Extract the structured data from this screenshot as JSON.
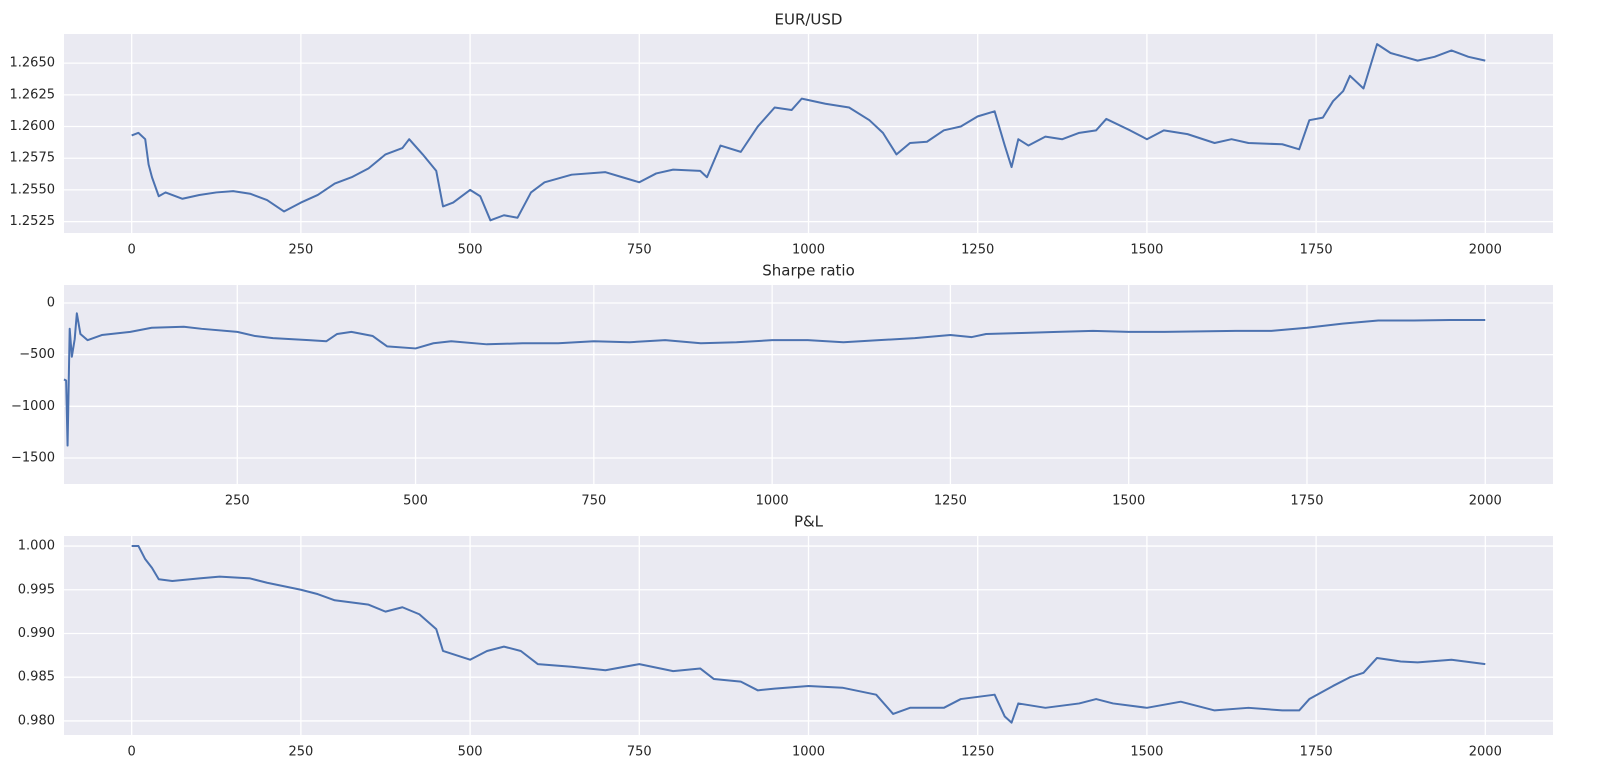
{
  "chart_data": [
    {
      "type": "line",
      "title": "EUR/USD",
      "color": "#4c72b0",
      "grid": true,
      "xlim": [
        -100,
        2100
      ],
      "xticks": [
        0,
        250,
        500,
        750,
        1000,
        1250,
        1500,
        1750,
        2000
      ],
      "ylim": [
        1.2516,
        1.2673
      ],
      "yticks": [
        1.2525,
        {
          "value": 1.255,
          "label": "1.2550"
        },
        1.2575,
        {
          "value": 1.26,
          "label": "1.2600"
        },
        1.2625,
        {
          "value": 1.265,
          "label": "1.2650"
        }
      ],
      "x": [
        0,
        10,
        20,
        25,
        30,
        40,
        50,
        75,
        100,
        125,
        150,
        175,
        200,
        225,
        250,
        275,
        300,
        325,
        350,
        375,
        400,
        410,
        430,
        450,
        460,
        475,
        500,
        515,
        530,
        550,
        570,
        590,
        610,
        650,
        700,
        725,
        750,
        775,
        800,
        840,
        850,
        870,
        900,
        925,
        950,
        975,
        990,
        1025,
        1060,
        1090,
        1110,
        1130,
        1150,
        1175,
        1200,
        1225,
        1250,
        1275,
        1290,
        1300,
        1310,
        1325,
        1350,
        1375,
        1400,
        1425,
        1440,
        1475,
        1500,
        1525,
        1560,
        1600,
        1625,
        1650,
        1700,
        1725,
        1740,
        1760,
        1775,
        1790,
        1800,
        1820,
        1840,
        1860,
        1880,
        1900,
        1925,
        1950,
        1975,
        2000
      ],
      "values": [
        1.2593,
        1.2595,
        1.259,
        1.257,
        1.256,
        1.2545,
        1.2548,
        1.2543,
        1.2546,
        1.2548,
        1.2549,
        1.2547,
        1.2542,
        1.2533,
        1.254,
        1.2546,
        1.2555,
        1.256,
        1.2567,
        1.2578,
        1.2583,
        1.259,
        1.2578,
        1.2565,
        1.2537,
        1.254,
        1.255,
        1.2545,
        1.2526,
        1.253,
        1.2528,
        1.2548,
        1.2556,
        1.2562,
        1.2564,
        1.256,
        1.2556,
        1.2563,
        1.2566,
        1.2565,
        1.256,
        1.2585,
        1.258,
        1.26,
        1.2615,
        1.2613,
        1.2622,
        1.2618,
        1.2615,
        1.2605,
        1.2595,
        1.2578,
        1.2587,
        1.2588,
        1.2597,
        1.26,
        1.2608,
        1.2612,
        1.2585,
        1.2568,
        1.259,
        1.2585,
        1.2592,
        1.259,
        1.2595,
        1.2597,
        1.2606,
        1.2597,
        1.259,
        1.2597,
        1.2594,
        1.2587,
        1.259,
        1.2587,
        1.2586,
        1.2582,
        1.2605,
        1.2607,
        1.262,
        1.2628,
        1.264,
        1.263,
        1.2665,
        1.2658,
        1.2655,
        1.2652,
        1.2655,
        1.266,
        1.2655,
        1.2652
      ]
    },
    {
      "type": "line",
      "title": "Sharpe ratio",
      "color": "#4c72b0",
      "grid": true,
      "xlim": [
        7,
        2095
      ],
      "xticks": [
        250,
        500,
        750,
        1000,
        1250,
        1500,
        1750,
        2000
      ],
      "ylim": [
        -1752,
        174
      ],
      "yticks": [
        {
          "value": -1500,
          "label": "−1500"
        },
        {
          "value": -1000,
          "label": "−1000"
        },
        {
          "value": -500,
          "label": "−500"
        },
        0
      ],
      "x": [
        7,
        10,
        12,
        15,
        18,
        22,
        25,
        30,
        40,
        60,
        100,
        130,
        175,
        200,
        250,
        275,
        300,
        350,
        375,
        390,
        410,
        440,
        460,
        500,
        525,
        550,
        600,
        650,
        700,
        750,
        800,
        850,
        900,
        950,
        1000,
        1050,
        1100,
        1150,
        1200,
        1250,
        1280,
        1300,
        1350,
        1400,
        1450,
        1500,
        1550,
        1600,
        1650,
        1700,
        1750,
        1800,
        1850,
        1900,
        1950,
        2000
      ],
      "values": [
        -740,
        -750,
        -1380,
        -250,
        -520,
        -350,
        -100,
        -300,
        -360,
        -310,
        -280,
        -240,
        -230,
        -250,
        -280,
        -320,
        -340,
        -360,
        -370,
        -300,
        -280,
        -320,
        -420,
        -440,
        -390,
        -370,
        -400,
        -390,
        -390,
        -370,
        -380,
        -360,
        -390,
        -380,
        -360,
        -360,
        -380,
        -360,
        -340,
        -310,
        -330,
        -300,
        -290,
        -280,
        -270,
        -280,
        -280,
        -275,
        -270,
        -270,
        -240,
        -200,
        -170,
        -170,
        -165,
        -165
      ]
    },
    {
      "type": "line",
      "title": "P&L",
      "color": "#4c72b0",
      "grid": true,
      "xlim": [
        -100,
        2100
      ],
      "xticks": [
        0,
        250,
        500,
        750,
        1000,
        1250,
        1500,
        1750,
        2000
      ],
      "ylim": [
        0.97839,
        1.00115
      ],
      "yticks": [
        {
          "value": 0.98,
          "label": "0.980"
        },
        0.985,
        {
          "value": 0.99,
          "label": "0.990"
        },
        0.995,
        {
          "value": 1,
          "label": "1.000"
        }
      ],
      "x": [
        0,
        10,
        20,
        30,
        40,
        60,
        100,
        130,
        175,
        200,
        250,
        275,
        300,
        350,
        375,
        400,
        425,
        450,
        460,
        500,
        525,
        550,
        575,
        600,
        650,
        700,
        750,
        800,
        840,
        860,
        900,
        925,
        950,
        1000,
        1050,
        1100,
        1125,
        1150,
        1200,
        1225,
        1275,
        1290,
        1300,
        1310,
        1350,
        1400,
        1425,
        1450,
        1500,
        1550,
        1600,
        1650,
        1700,
        1725,
        1740,
        1775,
        1800,
        1820,
        1840,
        1875,
        1900,
        1950,
        2000
      ],
      "values": [
        1.0,
        1.0,
        0.9985,
        0.9975,
        0.9962,
        0.996,
        0.9963,
        0.9965,
        0.9963,
        0.9958,
        0.995,
        0.9945,
        0.9938,
        0.9933,
        0.9925,
        0.993,
        0.9922,
        0.9905,
        0.988,
        0.987,
        0.988,
        0.9885,
        0.988,
        0.9865,
        0.9862,
        0.9858,
        0.9865,
        0.9857,
        0.986,
        0.9848,
        0.9845,
        0.9835,
        0.9837,
        0.984,
        0.9838,
        0.983,
        0.9808,
        0.9815,
        0.9815,
        0.9825,
        0.983,
        0.9805,
        0.9798,
        0.982,
        0.9815,
        0.982,
        0.9825,
        0.982,
        0.9815,
        0.9822,
        0.9812,
        0.9815,
        0.9812,
        0.9812,
        0.9825,
        0.984,
        0.985,
        0.9855,
        0.9872,
        0.9868,
        0.9867,
        0.987,
        0.9865
      ]
    }
  ]
}
